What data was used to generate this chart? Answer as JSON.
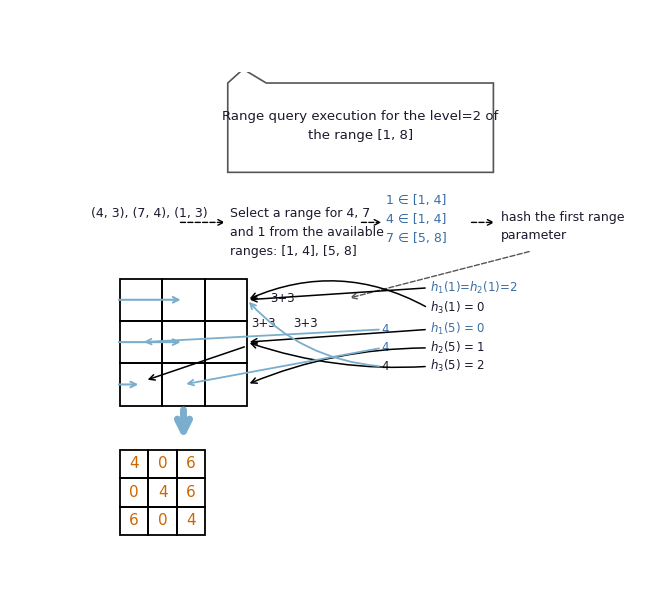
{
  "title_text": "Range query execution for the level=2 of\nthe range [1, 8]",
  "text_color_dark": "#1a1a2e",
  "text_color_blue": "#3a6ea5",
  "text_color_orange": "#cc6600",
  "arrow_color_black": "#000000",
  "arrow_color_blue": "#7aaecc",
  "background": "#ffffff",
  "step1_label": "(4, 3), (7, 4), (1, 3)",
  "step2_text": "Select a range for 4, 7\nand 1 from the available\nranges: [1, 4], [5, 8]",
  "step3_text": "1 ∈ [1, 4]\n4 ∈ [1, 4]\n7 ∈ [5, 8]",
  "step4_text": "hash the first range\nparameter",
  "result_matrix": [
    [
      4,
      0,
      6
    ],
    [
      0,
      4,
      6
    ],
    [
      6,
      0,
      4
    ]
  ]
}
